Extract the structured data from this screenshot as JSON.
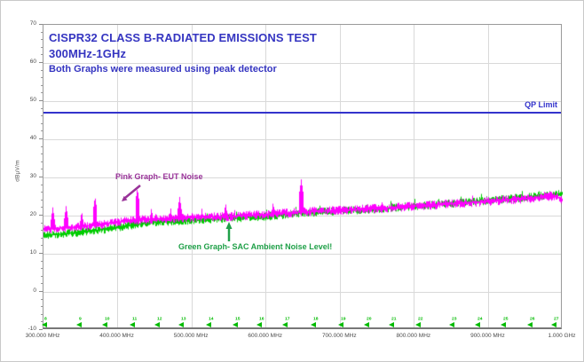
{
  "colors": {
    "title_blue": "#3535c1",
    "limit_blue": "#3333cc",
    "pink_trace": "#ff00ff",
    "green_trace": "#00cc00",
    "pink_annotation": "#993399",
    "green_annotation": "#1fa048",
    "marker_green": "#00bb00",
    "grid": "#d9d9d9"
  },
  "chart_data": {
    "type": "line",
    "title": "CISPR32 CLASS B-RADIATED EMISSIONS TEST",
    "subtitle": "300MHz-1GHz",
    "note": "Both Graphs were measured using peak detector",
    "ylabel": "dBµV/m",
    "ylim": [
      -10,
      70
    ],
    "y_major_step": 10,
    "y_minor_step": 2,
    "xlim_mhz": [
      300,
      1000
    ],
    "x_ticks": [
      {
        "mhz": 300,
        "label": "300.000 MHz"
      },
      {
        "mhz": 400,
        "label": "400.000 MHz"
      },
      {
        "mhz": 500,
        "label": "500.000 MHz"
      },
      {
        "mhz": 600,
        "label": "600.000 MHz"
      },
      {
        "mhz": 700,
        "label": "700.000 MHz"
      },
      {
        "mhz": 800,
        "label": "800.000 MHz"
      },
      {
        "mhz": 900,
        "label": "900.000 MHz"
      },
      {
        "mhz": 1000,
        "label": "1.000 GHz"
      }
    ],
    "limit": {
      "label": "QP Limit",
      "value_dbuv_m": 47
    },
    "series": [
      {
        "name": "EUT Noise",
        "annotation": "Pink Graph- EUT Noise",
        "color": "#ff00ff",
        "noise_db": 1.1,
        "baseline": [
          [
            300,
            16.6
          ],
          [
            320,
            16.8
          ],
          [
            350,
            17.2
          ],
          [
            380,
            17.8
          ],
          [
            400,
            18.4
          ],
          [
            430,
            19.0
          ],
          [
            450,
            19.3
          ],
          [
            500,
            19.6
          ],
          [
            550,
            19.9
          ],
          [
            600,
            20.4
          ],
          [
            650,
            21.1
          ],
          [
            700,
            21.5
          ],
          [
            750,
            22.0
          ],
          [
            800,
            22.6
          ],
          [
            850,
            23.2
          ],
          [
            900,
            23.9
          ],
          [
            950,
            24.6
          ],
          [
            990,
            25.3
          ],
          [
            1000,
            24.2
          ]
        ],
        "spikes": [
          [
            312,
            22.2
          ],
          [
            330,
            22.6
          ],
          [
            351,
            21.2
          ],
          [
            369,
            25.0
          ],
          [
            426,
            27.2
          ],
          [
            445,
            22.0
          ],
          [
            471,
            22.0
          ],
          [
            483,
            25.0
          ],
          [
            513,
            21.8
          ],
          [
            545,
            23.3
          ],
          [
            557,
            21.8
          ],
          [
            609,
            23.5
          ],
          [
            647,
            29.5
          ],
          [
            700,
            23.0
          ],
          [
            756,
            23.6
          ],
          [
            820,
            24.6
          ],
          [
            878,
            25.3
          ],
          [
            935,
            26.0
          ],
          [
            975,
            26.4
          ]
        ]
      },
      {
        "name": "SAC Ambient Noise Level",
        "annotation": "Green Graph- SAC Ambient Noise Level!",
        "color": "#00cc00",
        "noise_db": 1.0,
        "baseline": [
          [
            300,
            15.0
          ],
          [
            320,
            15.2
          ],
          [
            350,
            15.8
          ],
          [
            380,
            16.5
          ],
          [
            400,
            17.0
          ],
          [
            430,
            18.0
          ],
          [
            450,
            18.4
          ],
          [
            500,
            18.9
          ],
          [
            550,
            19.4
          ],
          [
            600,
            19.9
          ],
          [
            650,
            20.8
          ],
          [
            700,
            21.3
          ],
          [
            750,
            21.9
          ],
          [
            800,
            22.6
          ],
          [
            850,
            23.3
          ],
          [
            900,
            24.1
          ],
          [
            950,
            24.9
          ],
          [
            1000,
            25.8
          ]
        ],
        "spikes": [
          [
            395,
            18.6
          ],
          [
            455,
            19.8
          ],
          [
            520,
            20.8
          ],
          [
            560,
            21.5
          ],
          [
            600,
            22.0
          ],
          [
            640,
            22.5
          ],
          [
            672,
            22.8
          ],
          [
            705,
            23.2
          ],
          [
            735,
            23.6
          ],
          [
            768,
            24.0
          ],
          [
            800,
            24.6
          ],
          [
            832,
            25.0
          ],
          [
            862,
            25.5
          ],
          [
            890,
            25.8
          ],
          [
            918,
            26.1
          ],
          [
            945,
            26.5
          ],
          [
            968,
            26.8
          ],
          [
            990,
            27.0
          ]
        ]
      }
    ],
    "markers": {
      "level_dbuv_m": -8.6,
      "items": [
        {
          "n": 8,
          "mhz": 305
        },
        {
          "n": 9,
          "mhz": 351
        },
        {
          "n": 10,
          "mhz": 386
        },
        {
          "n": 11,
          "mhz": 423
        },
        {
          "n": 12,
          "mhz": 457
        },
        {
          "n": 13,
          "mhz": 489
        },
        {
          "n": 14,
          "mhz": 526
        },
        {
          "n": 15,
          "mhz": 562
        },
        {
          "n": 16,
          "mhz": 594
        },
        {
          "n": 17,
          "mhz": 629
        },
        {
          "n": 18,
          "mhz": 667
        },
        {
          "n": 19,
          "mhz": 704
        },
        {
          "n": 20,
          "mhz": 739
        },
        {
          "n": 21,
          "mhz": 773
        },
        {
          "n": 22,
          "mhz": 808
        },
        {
          "n": 23,
          "mhz": 854
        },
        {
          "n": 24,
          "mhz": 889
        },
        {
          "n": 25,
          "mhz": 923
        },
        {
          "n": 26,
          "mhz": 959
        },
        {
          "n": 27,
          "mhz": 992
        }
      ]
    }
  }
}
